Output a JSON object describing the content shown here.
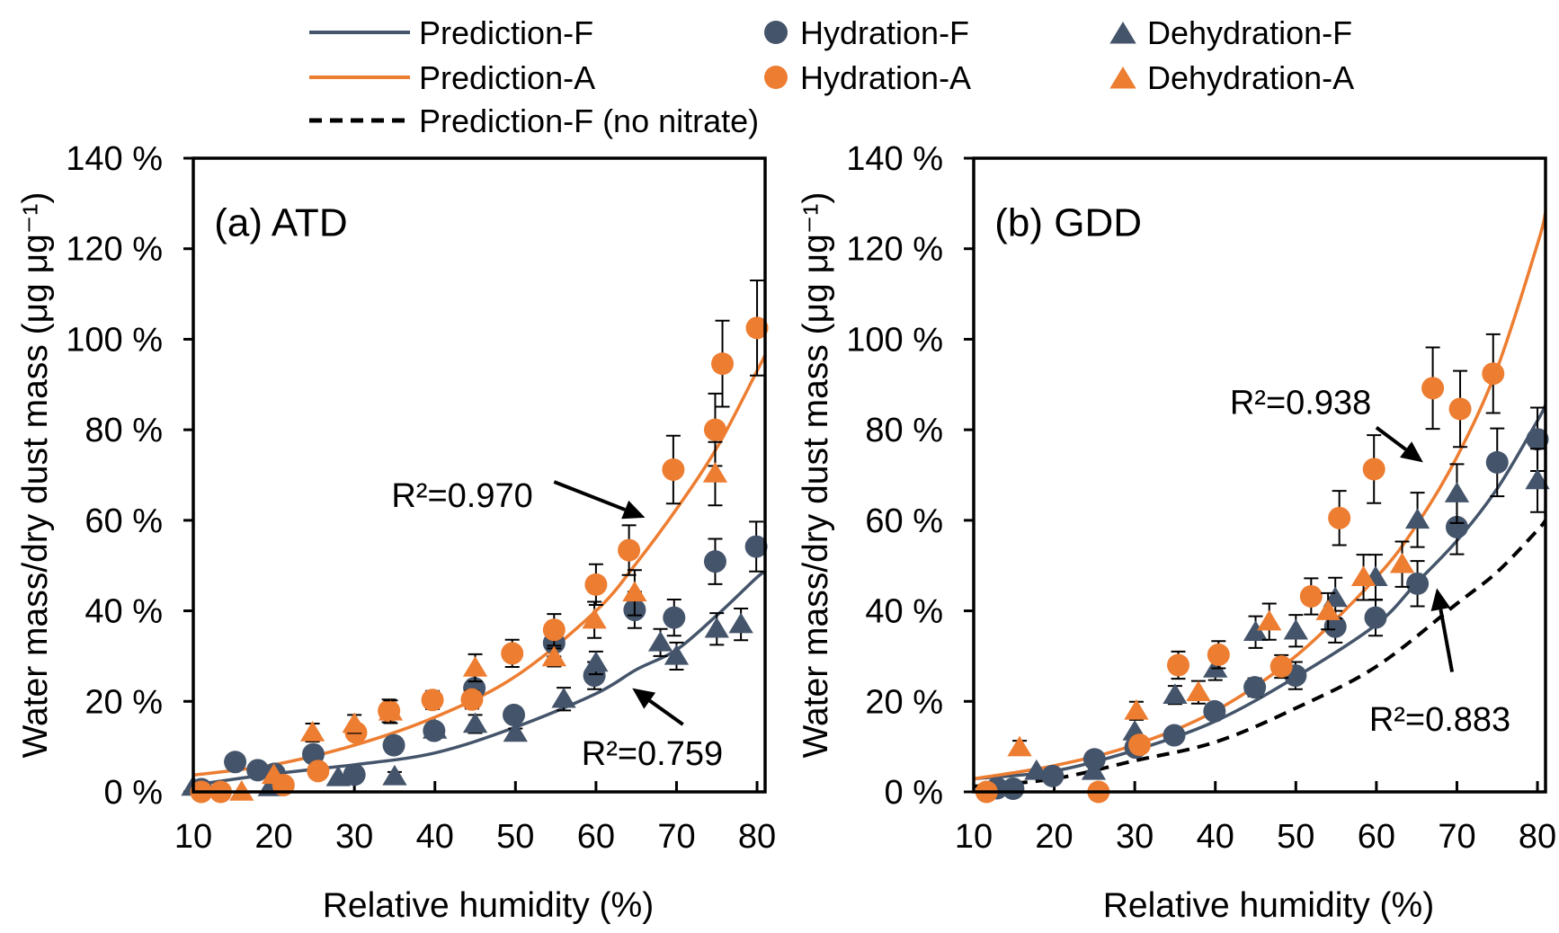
{
  "colors": {
    "F": "#44546a",
    "A": "#ed7d31",
    "noNitrate": "#000000"
  },
  "legend": [
    {
      "label": "Prediction-F",
      "kind": "line",
      "color": "#44546a"
    },
    {
      "label": "Hydration-F",
      "kind": "circle",
      "color": "#44546a"
    },
    {
      "label": "Dehydration-F",
      "kind": "triangle",
      "color": "#44546a"
    },
    {
      "label": "Prediction-A",
      "kind": "line",
      "color": "#ed7d31"
    },
    {
      "label": "Hydration-A",
      "kind": "circle",
      "color": "#ed7d31"
    },
    {
      "label": "Dehydration-A",
      "kind": "triangle",
      "color": "#ed7d31"
    },
    {
      "label": "Prediction-F (no nitrate)",
      "kind": "dashed",
      "color": "#000000"
    }
  ],
  "chart_data": [
    {
      "type": "scatter",
      "title": "(a) ATD",
      "xlabel": "Relative humidity (%)",
      "ylabel": "Water mass/dry dust mass (μg μg⁻¹)",
      "xlim": [
        10,
        81
      ],
      "ylim": [
        0,
        140
      ],
      "xticks": [
        "10",
        "20",
        "30",
        "40",
        "50",
        "60",
        "70",
        "80"
      ],
      "yticks": [
        "0 %",
        "20 %",
        "40 %",
        "60 %",
        "80 %",
        "100 %",
        "120 %",
        "140 %"
      ],
      "grid": false,
      "annotations": [
        {
          "text": "R²=0.970",
          "target": "Prediction-A"
        },
        {
          "text": "R²=0.759",
          "target": "Prediction-F"
        }
      ],
      "series": [
        {
          "name": "Prediction-F",
          "kind": "line",
          "color": "#44546a",
          "points": [
            [
              10,
              1.5
            ],
            [
              20,
              4
            ],
            [
              30,
              6
            ],
            [
              40,
              8.6
            ],
            [
              50,
              14.3
            ],
            [
              60,
              21.7
            ],
            [
              65,
              27
            ],
            [
              70,
              31.4
            ],
            [
              75,
              39
            ],
            [
              80,
              47.4
            ],
            [
              81,
              48.5
            ]
          ]
        },
        {
          "name": "Prediction-A",
          "kind": "line",
          "color": "#ed7d31",
          "points": [
            [
              10,
              3.7
            ],
            [
              20,
              6
            ],
            [
              30,
              10.3
            ],
            [
              40,
              16.5
            ],
            [
              50,
              25.5
            ],
            [
              60,
              40
            ],
            [
              65,
              50.5
            ],
            [
              70,
              62.5
            ],
            [
              75,
              76
            ],
            [
              80,
              93
            ],
            [
              81,
              96.5
            ]
          ]
        },
        {
          "name": "Hydration-F",
          "kind": "circle",
          "color": "#44546a",
          "points": [
            [
              11,
              0.6,
              0
            ],
            [
              15.2,
              6.6,
              0
            ],
            [
              18,
              4.8,
              0
            ],
            [
              20.1,
              4,
              0
            ],
            [
              24.9,
              8.3,
              0
            ],
            [
              30,
              3.8,
              0
            ],
            [
              34.9,
              10.3,
              0
            ],
            [
              39.9,
              13.5,
              1
            ],
            [
              44.9,
              22.9,
              3
            ],
            [
              49.8,
              17,
              0
            ],
            [
              54.8,
              32.9,
              3
            ],
            [
              59.8,
              25.7,
              3
            ],
            [
              64.8,
              40.2,
              4
            ],
            [
              69.7,
              38.5,
              4
            ],
            [
              74.8,
              50.9,
              5
            ],
            [
              79.9,
              54.2,
              5.5
            ]
          ]
        },
        {
          "name": "Dehydration-F",
          "kind": "triangle",
          "color": "#44546a",
          "points": [
            [
              10,
              1.1,
              0
            ],
            [
              19.5,
              1,
              0
            ],
            [
              28,
              3.2,
              0
            ],
            [
              35,
              3.4,
              1
            ],
            [
              40,
              13.7,
              0
            ],
            [
              45,
              15,
              2
            ],
            [
              50,
              13,
              1
            ],
            [
              56,
              20.5,
              2.5
            ],
            [
              60,
              28.5,
              2.5
            ],
            [
              68,
              33,
              3
            ],
            [
              70,
              30,
              3
            ],
            [
              75,
              36,
              3.5
            ],
            [
              78,
              37,
              3.5
            ]
          ]
        },
        {
          "name": "Hydration-A",
          "kind": "circle",
          "color": "#ed7d31",
          "points": [
            [
              11,
              0,
              0
            ],
            [
              13.4,
              0,
              0
            ],
            [
              21.2,
              1.5,
              0
            ],
            [
              25.5,
              4.6,
              0
            ],
            [
              30.2,
              13.1,
              0
            ],
            [
              34.3,
              17.9,
              2.5
            ],
            [
              39.7,
              20.3,
              2
            ],
            [
              44.6,
              20.4,
              2
            ],
            [
              49.6,
              30.6,
              3
            ],
            [
              54.8,
              35.8,
              3.5
            ],
            [
              60,
              45.8,
              4.5
            ],
            [
              64.1,
              53.4,
              5.5
            ],
            [
              69.6,
              71.2,
              7.5
            ],
            [
              74.8,
              80,
              8
            ],
            [
              75.7,
              94.6,
              9.5
            ],
            [
              80,
              102.5,
              10.5
            ]
          ]
        },
        {
          "name": "Dehydration-A",
          "kind": "triangle",
          "color": "#ed7d31",
          "points": [
            [
              16,
              0,
              0
            ],
            [
              20,
              3.7,
              0
            ],
            [
              24.8,
              13.1,
              2
            ],
            [
              30,
              15,
              2
            ],
            [
              34.5,
              17.7,
              2.5
            ],
            [
              45,
              27.4,
              3
            ],
            [
              54.8,
              29.7,
              2
            ],
            [
              59.8,
              38,
              4
            ],
            [
              64.8,
              44,
              5
            ],
            [
              74.8,
              70.3,
              7
            ]
          ]
        }
      ]
    },
    {
      "type": "scatter",
      "title": "(b) GDD",
      "xlabel": "Relative humidity (%)",
      "ylabel": "Water mass/dry dust mass (μg μg⁻¹)",
      "xlim": [
        10,
        81
      ],
      "ylim": [
        0,
        140
      ],
      "xticks": [
        "10",
        "20",
        "30",
        "40",
        "50",
        "60",
        "70",
        "80"
      ],
      "yticks": [
        "0 %",
        "20 %",
        "40 %",
        "60 %",
        "80 %",
        "100 %",
        "120 %",
        "140 %"
      ],
      "grid": false,
      "annotations": [
        {
          "text": "R²=0.938",
          "target": "Prediction-A"
        },
        {
          "text": "R²=0.883",
          "target": "Prediction-F"
        }
      ],
      "series": [
        {
          "name": "Prediction-F",
          "kind": "line",
          "color": "#44546a",
          "points": [
            [
              10,
              2.9
            ],
            [
              20,
              4.6
            ],
            [
              30,
              9.2
            ],
            [
              40,
              15.6
            ],
            [
              50,
              25.4
            ],
            [
              60,
              37
            ],
            [
              65,
              46.2
            ],
            [
              70,
              55.5
            ],
            [
              75,
              67
            ],
            [
              80,
              82
            ],
            [
              81,
              85.5
            ]
          ]
        },
        {
          "name": "Prediction-A",
          "kind": "line",
          "color": "#ed7d31",
          "points": [
            [
              10,
              2.9
            ],
            [
              20,
              5.8
            ],
            [
              30,
              10.4
            ],
            [
              40,
              17.9
            ],
            [
              50,
              30
            ],
            [
              60,
              47.4
            ],
            [
              65,
              59
            ],
            [
              70,
              74
            ],
            [
              75,
              93.6
            ],
            [
              80,
              121
            ],
            [
              81,
              128
            ]
          ]
        },
        {
          "name": "Prediction-F (no nitrate)",
          "kind": "dashed",
          "color": "#000000",
          "points": [
            [
              10,
              1.2
            ],
            [
              20,
              2.9
            ],
            [
              30,
              6.9
            ],
            [
              40,
              11
            ],
            [
              50,
              18.5
            ],
            [
              60,
              27.7
            ],
            [
              70,
              41.6
            ],
            [
              75,
              48.6
            ],
            [
              80,
              57.8
            ],
            [
              81,
              60
            ]
          ]
        },
        {
          "name": "Hydration-F",
          "kind": "circle",
          "color": "#44546a",
          "points": [
            [
              12.9,
              0.8,
              0
            ],
            [
              14.9,
              0.7,
              0
            ],
            [
              19.8,
              3.5,
              0
            ],
            [
              25,
              7.2,
              0
            ],
            [
              30.1,
              9.8,
              0
            ],
            [
              34.9,
              12.5,
              0
            ],
            [
              39.9,
              17.8,
              0
            ],
            [
              44.9,
              23.1,
              2
            ],
            [
              49.95,
              25.7,
              3
            ],
            [
              54.9,
              36.5,
              3.5
            ],
            [
              59.9,
              38.5,
              4
            ],
            [
              65.1,
              46,
              5
            ],
            [
              70,
              58.5,
              6
            ],
            [
              75,
              72.8,
              7.5
            ],
            [
              80,
              77.9,
              7
            ]
          ]
        },
        {
          "name": "Dehydration-F",
          "kind": "triangle",
          "color": "#44546a",
          "points": [
            [
              17.8,
              4.6,
              0
            ],
            [
              24.9,
              4.6,
              0
            ],
            [
              30,
              13.3,
              0
            ],
            [
              35,
              21.4,
              2
            ],
            [
              40,
              27.2,
              2.5
            ],
            [
              45,
              35.3,
              3.5
            ],
            [
              50,
              35.6,
              3.5
            ],
            [
              54.9,
              42.8,
              4.5
            ],
            [
              59.9,
              47.4,
              5
            ],
            [
              65.1,
              60.1,
              6
            ],
            [
              70,
              65.9,
              6.5
            ],
            [
              80,
              68.8,
              7
            ]
          ]
        },
        {
          "name": "Hydration-A",
          "kind": "circle",
          "color": "#ed7d31",
          "points": [
            [
              11.6,
              0,
              0
            ],
            [
              25.5,
              0,
              0
            ],
            [
              30.6,
              10.4,
              0
            ],
            [
              35.4,
              28,
              3
            ],
            [
              40.4,
              30.3,
              3
            ],
            [
              48.2,
              27.7,
              2.5
            ],
            [
              51.9,
              43.2,
              4
            ],
            [
              55.4,
              60.5,
              6
            ],
            [
              59.7,
              71.3,
              7.5
            ],
            [
              67,
              89.2,
              9
            ],
            [
              70.4,
              84.6,
              8.4
            ],
            [
              74.5,
              92.4,
              8.7
            ]
          ]
        },
        {
          "name": "Dehydration-A",
          "kind": "triangle",
          "color": "#ed7d31",
          "points": [
            [
              15.7,
              9.8,
              1.5
            ],
            [
              30.2,
              17.9,
              2
            ],
            [
              37.9,
              22,
              2.5
            ],
            [
              46.7,
              37.6,
              4
            ],
            [
              54,
              39.9,
              4
            ],
            [
              58.4,
              47.4,
              5
            ],
            [
              63.2,
              50.3,
              5
            ]
          ]
        }
      ]
    }
  ]
}
